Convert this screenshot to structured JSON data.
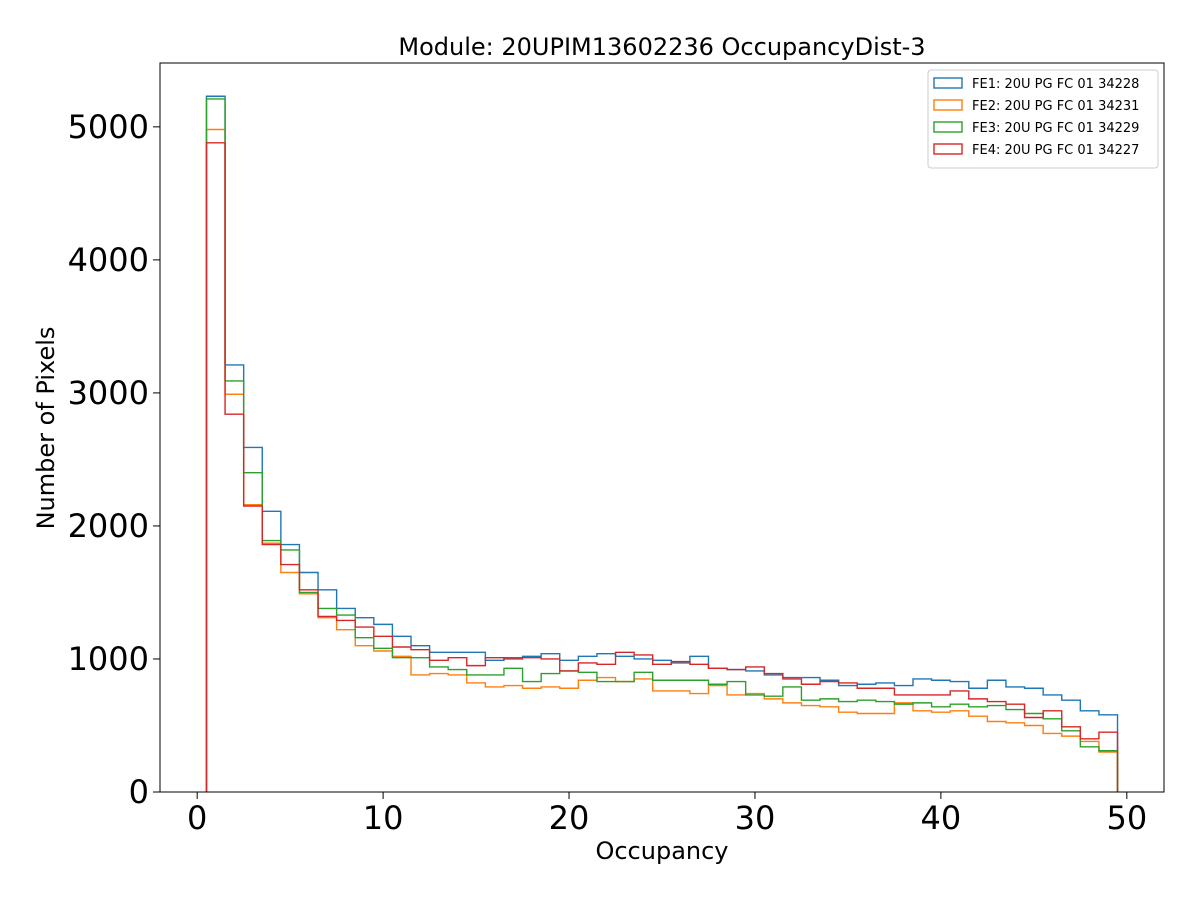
{
  "chart_data": {
    "type": "step-histogram",
    "title": "Module: 20UPIM13602236 OccupancyDist-3",
    "xlabel": "Occupancy",
    "ylabel": "Number of Pixels",
    "xlim": [
      -2,
      52
    ],
    "ylim": [
      0,
      5480
    ],
    "xticks": [
      0,
      10,
      20,
      30,
      40,
      50
    ],
    "yticks": [
      0,
      1000,
      2000,
      3000,
      4000,
      5000
    ],
    "legend_position": "top-right",
    "bin_edges_start": 0.5,
    "bin_width": 1,
    "series": [
      {
        "name": "FE1: 20U PG FC 01 34228",
        "color": "#1f77b4",
        "values": [
          5230,
          3210,
          2590,
          2110,
          1860,
          1650,
          1520,
          1380,
          1310,
          1260,
          1170,
          1100,
          1050,
          1050,
          1050,
          990,
          1010,
          1020,
          1040,
          990,
          1020,
          1040,
          1020,
          1000,
          990,
          970,
          1020,
          930,
          920,
          910,
          880,
          860,
          860,
          840,
          800,
          810,
          820,
          800,
          850,
          840,
          830,
          780,
          840,
          790,
          780,
          730,
          690,
          610,
          580
        ]
      },
      {
        "name": "FE2: 20U PG FC 01 34231",
        "color": "#ff7f0e",
        "values": [
          4980,
          2990,
          2160,
          1870,
          1650,
          1490,
          1310,
          1220,
          1100,
          1060,
          1020,
          880,
          890,
          880,
          820,
          790,
          800,
          780,
          790,
          780,
          840,
          860,
          830,
          850,
          760,
          760,
          740,
          800,
          730,
          740,
          700,
          670,
          650,
          640,
          600,
          590,
          590,
          670,
          610,
          600,
          610,
          570,
          530,
          520,
          500,
          440,
          420,
          380,
          300
        ]
      },
      {
        "name": "FE3: 20U PG FC 01 34229",
        "color": "#2ca02c",
        "values": [
          5210,
          3090,
          2400,
          1890,
          1820,
          1500,
          1380,
          1330,
          1160,
          1080,
          1010,
          1010,
          940,
          920,
          880,
          880,
          930,
          830,
          890,
          910,
          900,
          830,
          830,
          900,
          840,
          840,
          840,
          810,
          830,
          730,
          720,
          790,
          690,
          700,
          680,
          690,
          680,
          660,
          670,
          640,
          660,
          640,
          650,
          620,
          590,
          550,
          460,
          340,
          310
        ]
      },
      {
        "name": "FE4: 20U PG FC 01 34227",
        "color": "#d62728",
        "values": [
          4880,
          2840,
          2150,
          1860,
          1710,
          1520,
          1320,
          1290,
          1240,
          1170,
          1090,
          1070,
          990,
          1010,
          950,
          1010,
          1000,
          1010,
          1000,
          910,
          970,
          960,
          1050,
          1030,
          960,
          980,
          960,
          930,
          920,
          940,
          890,
          850,
          810,
          830,
          820,
          780,
          780,
          730,
          730,
          730,
          760,
          700,
          680,
          660,
          560,
          610,
          490,
          400,
          450
        ]
      }
    ]
  }
}
